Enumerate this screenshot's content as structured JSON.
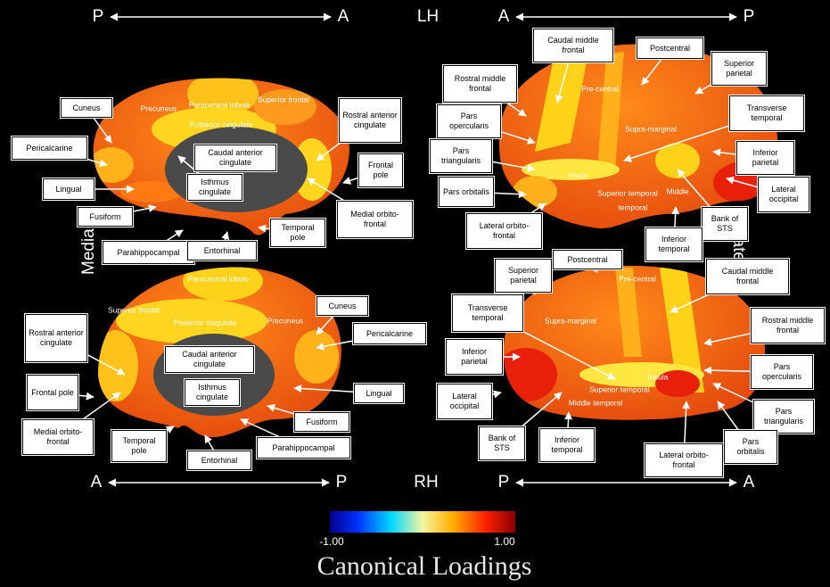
{
  "axes": [
    {
      "left": "P",
      "right": "A"
    },
    {
      "left": "A",
      "right": "P"
    },
    {
      "left": "A",
      "right": "P"
    },
    {
      "left": "P",
      "right": "A"
    }
  ],
  "hemispheres": [
    "LH",
    "RH"
  ],
  "views": [
    "Medial",
    "Lateral"
  ],
  "panels": [
    {
      "callouts": [
        "Cuneus",
        "Pericalcarine",
        "Lingual",
        "Fusiform",
        "Parahippocampal",
        "Entorhinal",
        "Temporal pole",
        "Medial orbito-frontal",
        "Frontal pole",
        "Rostral anterior cingulate",
        "Caudal anterior cingulate",
        "Isthmus cingulate"
      ],
      "regions": [
        "Paracentral lobule",
        "Precuneus",
        "Posterior cingulate",
        "Superior frontal"
      ]
    },
    {
      "callouts": [
        "Caudal middle frontal",
        "Postcentral",
        "Superior parietal",
        "Rostral middle frontal",
        "Pars opercularis",
        "Transverse temporal",
        "Pars triangularis",
        "Inferior parietal",
        "Pars orbitalis",
        "Lateral occipital",
        "Lateral orbito-frontal",
        "Bank of STS",
        "Inferior temporal"
      ],
      "regions": [
        "Pre-central",
        "Supra-marginal",
        "Insula",
        "Superior temporal",
        "Middle",
        "temporal"
      ]
    },
    {
      "callouts": [
        "Rostral anterior cingulate",
        "Frontal pole",
        "Medial orbito-frontal",
        "Temporal pole",
        "Entorhinal",
        "Parahippocampal",
        "Fusiform",
        "Lingual",
        "Pericalcarine",
        "Cuneus",
        "Caudal anterior cingulate",
        "Isthmus cingulate"
      ],
      "regions": [
        "Paracentral lobule",
        "Superior frontal",
        "Posterior cingulate",
        "Precuneus"
      ]
    },
    {
      "callouts": [
        "Superior parietal",
        "Postcentral",
        "Caudal middle frontal",
        "Transverse temporal",
        "Rostral middle frontal",
        "Inferior parietal",
        "Pars opercularis",
        "Lateral occipital",
        "Pars triangularis",
        "Bank of STS",
        "Inferior temporal",
        "Pars orbitalis",
        "Lateral orbito-frontal"
      ],
      "regions": [
        "Pre-central",
        "Supra-marginal",
        "Insula",
        "Superior temporal",
        "Middle temporal"
      ]
    }
  ],
  "colorbar": {
    "min_label": "-1.00",
    "max_label": "1.00",
    "title": "Canonical Loadings"
  }
}
